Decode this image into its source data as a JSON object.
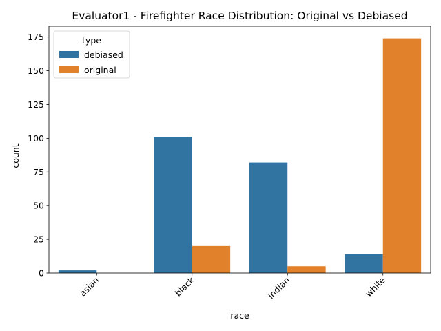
{
  "chart_data": {
    "type": "bar",
    "title": "Evaluator1 - Firefighter Race Distribution: Original vs Debiased",
    "xlabel": "race",
    "ylabel": "count",
    "categories": [
      "asian",
      "black",
      "indian",
      "white"
    ],
    "ylim": [
      0,
      183
    ],
    "yticks": [
      0,
      25,
      50,
      75,
      100,
      125,
      150,
      175
    ],
    "x_tick_rotation_deg": 45,
    "grid": false,
    "legend": {
      "title": "type",
      "placement": "top-left"
    },
    "series": [
      {
        "name": "debiased",
        "color": "#3274a1",
        "values": [
          2,
          101,
          82,
          14
        ]
      },
      {
        "name": "original",
        "color": "#e1812c",
        "values": [
          0,
          20,
          5,
          174
        ]
      }
    ]
  }
}
